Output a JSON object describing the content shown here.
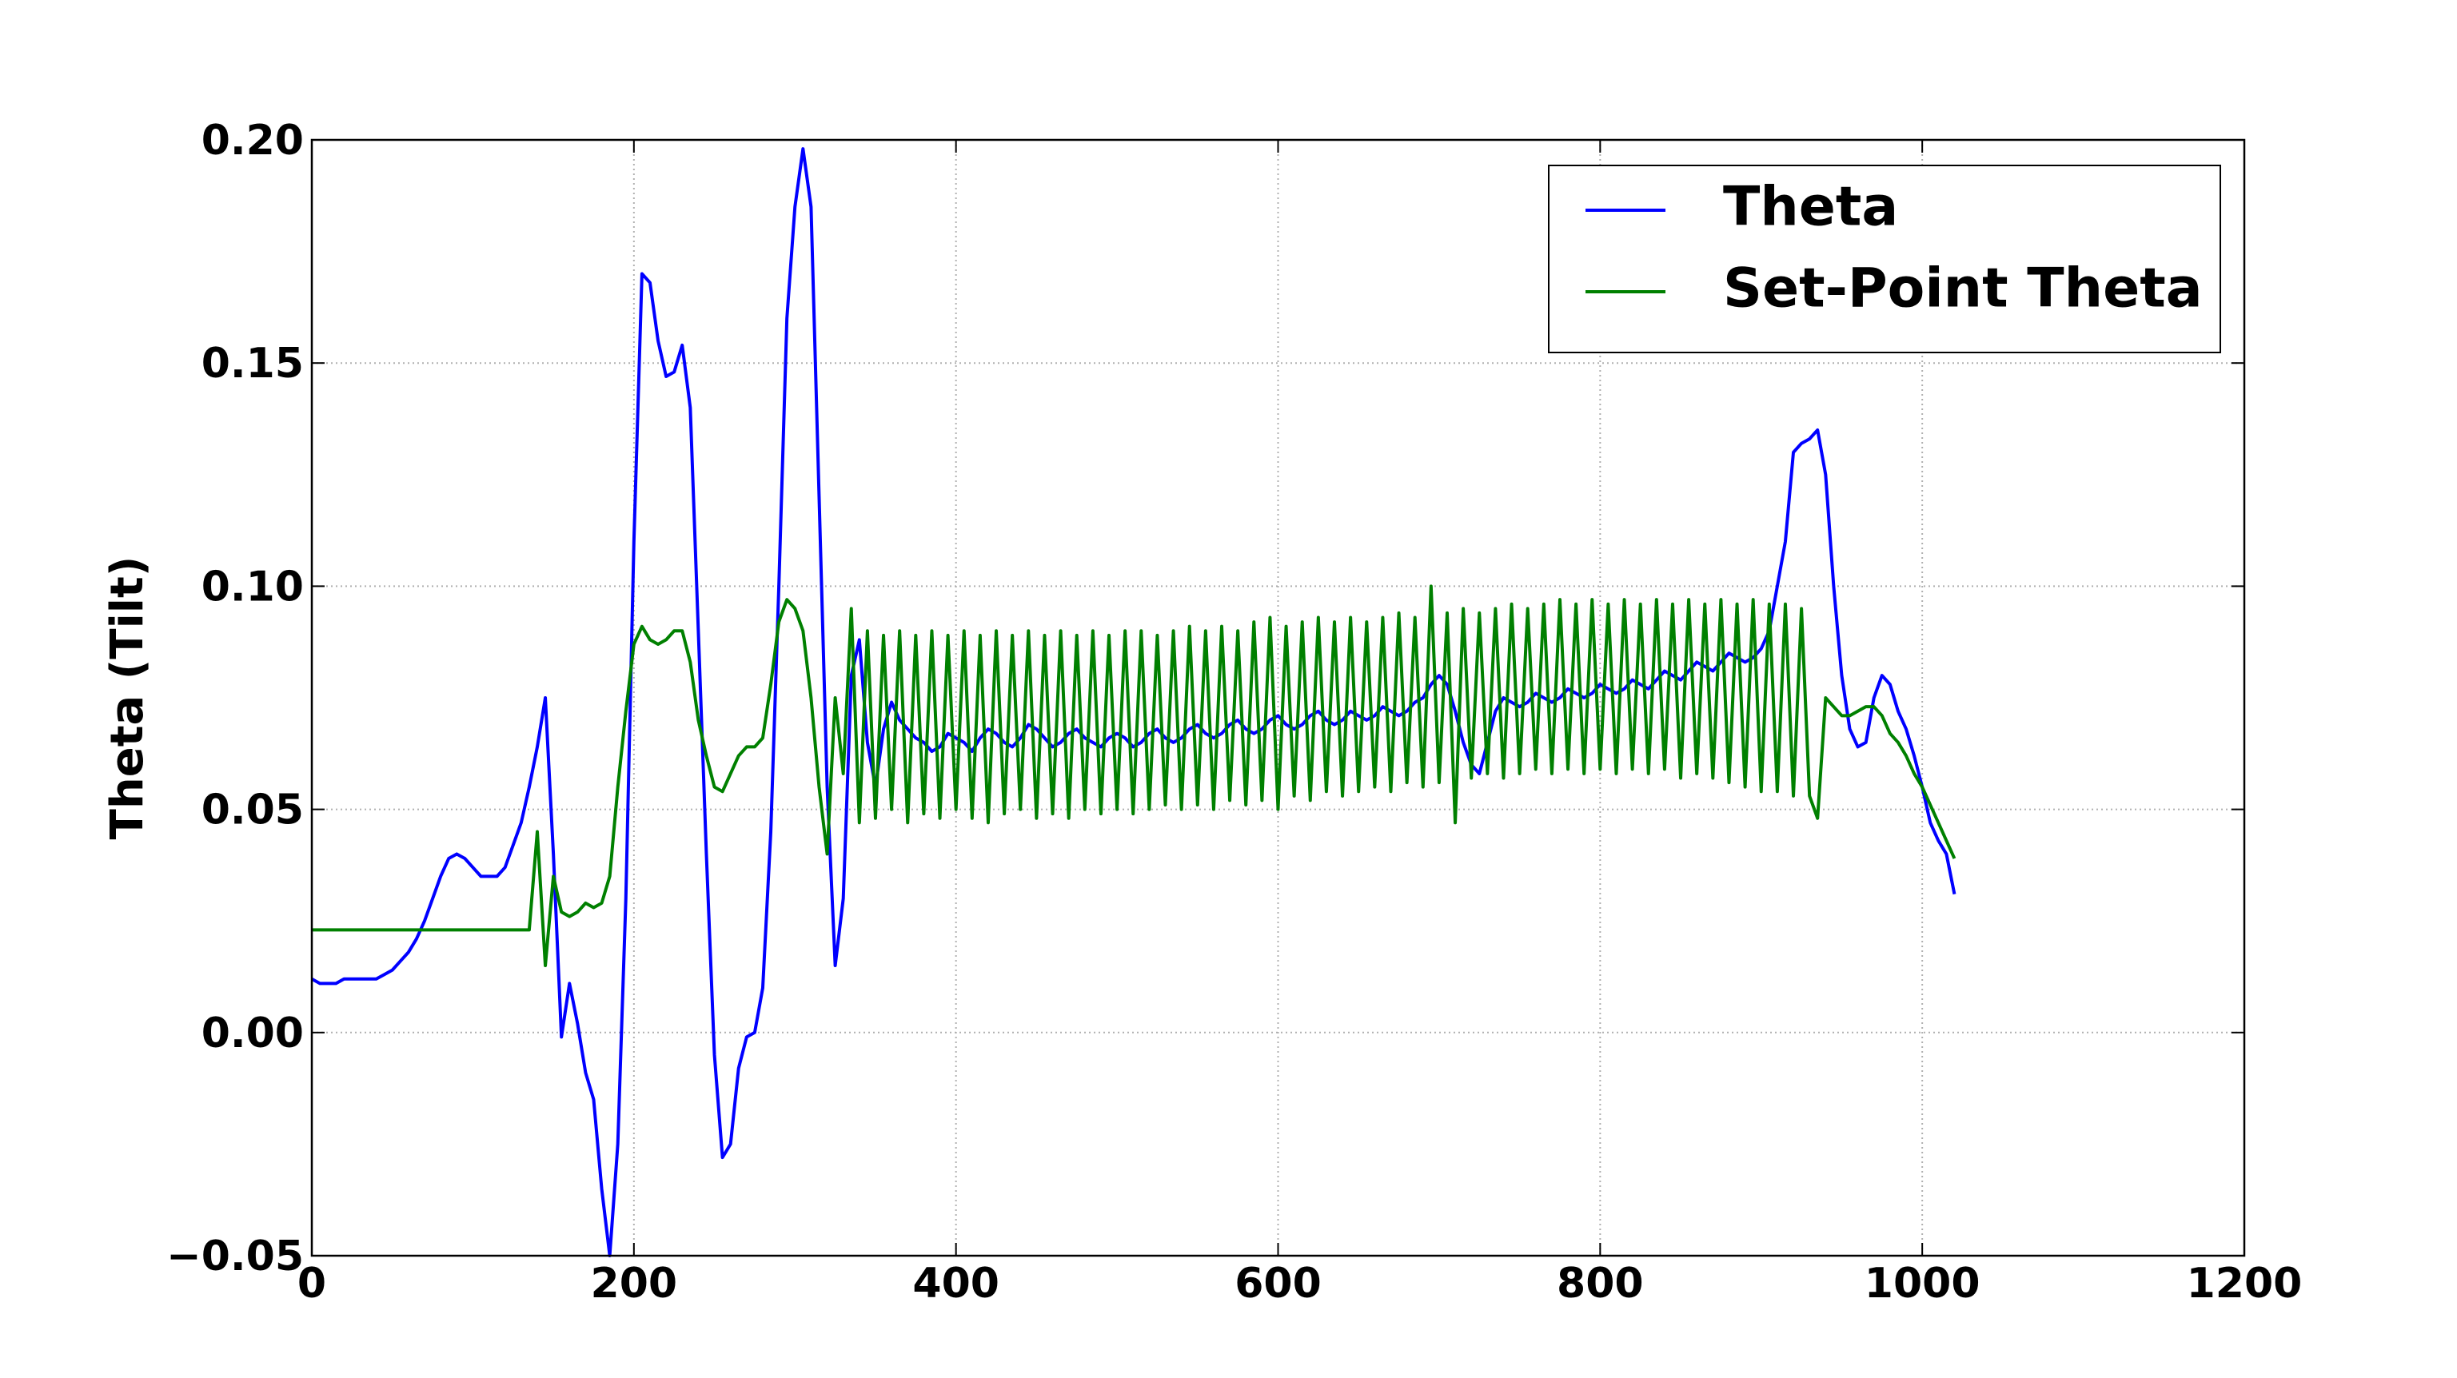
{
  "chart_data": {
    "type": "line",
    "ylabel": "Theta (Tilt)",
    "xlim": [
      0,
      1200
    ],
    "xticks": [
      0,
      200,
      400,
      600,
      800,
      1000,
      1200
    ],
    "ylim": [
      -0.05,
      0.2
    ],
    "yticks": [
      {
        "value": -0.05,
        "label": "−0.05"
      },
      {
        "value": 0,
        "label": "0.00"
      },
      0.05,
      {
        "value": 0.1,
        "label": "0.10"
      },
      0.15,
      {
        "value": 0.2,
        "label": "0.20"
      }
    ],
    "grid": true,
    "legend": "upper right",
    "x": [
      0,
      5,
      10,
      15,
      20,
      25,
      30,
      35,
      40,
      45,
      50,
      55,
      60,
      65,
      70,
      75,
      80,
      85,
      90,
      95,
      100,
      105,
      110,
      115,
      120,
      125,
      130,
      135,
      140,
      145,
      150,
      155,
      160,
      165,
      170,
      175,
      180,
      185,
      190,
      195,
      200,
      205,
      210,
      215,
      220,
      225,
      230,
      235,
      240,
      245,
      250,
      255,
      260,
      265,
      270,
      275,
      280,
      285,
      290,
      295,
      300,
      305,
      310,
      315,
      320,
      325,
      330,
      335,
      340,
      345,
      350,
      355,
      360,
      365,
      370,
      375,
      380,
      385,
      390,
      395,
      400,
      405,
      410,
      415,
      420,
      425,
      430,
      435,
      440,
      445,
      450,
      455,
      460,
      465,
      470,
      475,
      480,
      485,
      490,
      495,
      500,
      505,
      510,
      515,
      520,
      525,
      530,
      535,
      540,
      545,
      550,
      555,
      560,
      565,
      570,
      575,
      580,
      585,
      590,
      595,
      600,
      605,
      610,
      615,
      620,
      625,
      630,
      635,
      640,
      645,
      650,
      655,
      660,
      665,
      670,
      675,
      680,
      685,
      690,
      695,
      700,
      705,
      710,
      715,
      720,
      725,
      730,
      735,
      740,
      745,
      750,
      755,
      760,
      765,
      770,
      775,
      780,
      785,
      790,
      795,
      800,
      805,
      810,
      815,
      820,
      825,
      830,
      835,
      840,
      845,
      850,
      855,
      860,
      865,
      870,
      875,
      880,
      885,
      890,
      895,
      900,
      905,
      910,
      915,
      920,
      925,
      930,
      935,
      940,
      945,
      950,
      955,
      960,
      965,
      970,
      975,
      980,
      985,
      990,
      995,
      1000,
      1005,
      1010,
      1015,
      1020
    ],
    "series": [
      {
        "name": "Theta",
        "color": "#0000ff",
        "values": [
          0.012,
          0.011,
          0.011,
          0.011,
          0.012,
          0.012,
          0.012,
          0.012,
          0.012,
          0.013,
          0.014,
          0.016,
          0.018,
          0.021,
          0.025,
          0.03,
          0.035,
          0.039,
          0.04,
          0.039,
          0.037,
          0.035,
          0.035,
          0.035,
          0.037,
          0.042,
          0.047,
          0.055,
          0.064,
          0.075,
          0.04,
          -0.001,
          0.011,
          0.002,
          -0.009,
          -0.015,
          -0.035,
          -0.05,
          -0.025,
          0.03,
          0.11,
          0.17,
          0.168,
          0.155,
          0.147,
          0.148,
          0.154,
          0.14,
          0.09,
          0.04,
          -0.005,
          -0.028,
          -0.025,
          -0.008,
          -0.001,
          0.0,
          0.01,
          0.045,
          0.1,
          0.16,
          0.185,
          0.198,
          0.185,
          0.12,
          0.055,
          0.015,
          0.03,
          0.08,
          0.088,
          0.065,
          0.055,
          0.068,
          0.074,
          0.07,
          0.068,
          0.066,
          0.065,
          0.063,
          0.064,
          0.067,
          0.066,
          0.065,
          0.063,
          0.066,
          0.068,
          0.067,
          0.065,
          0.064,
          0.066,
          0.069,
          0.068,
          0.066,
          0.064,
          0.065,
          0.067,
          0.068,
          0.066,
          0.065,
          0.064,
          0.066,
          0.067,
          0.066,
          0.064,
          0.065,
          0.067,
          0.068,
          0.066,
          0.065,
          0.066,
          0.068,
          0.069,
          0.067,
          0.066,
          0.067,
          0.069,
          0.07,
          0.068,
          0.067,
          0.068,
          0.07,
          0.071,
          0.069,
          0.068,
          0.069,
          0.071,
          0.072,
          0.07,
          0.069,
          0.07,
          0.072,
          0.071,
          0.07,
          0.071,
          0.073,
          0.072,
          0.071,
          0.072,
          0.074,
          0.075,
          0.078,
          0.08,
          0.078,
          0.072,
          0.065,
          0.06,
          0.058,
          0.065,
          0.072,
          0.075,
          0.074,
          0.073,
          0.074,
          0.076,
          0.075,
          0.074,
          0.075,
          0.077,
          0.076,
          0.075,
          0.076,
          0.078,
          0.077,
          0.076,
          0.077,
          0.079,
          0.078,
          0.077,
          0.079,
          0.081,
          0.08,
          0.079,
          0.081,
          0.083,
          0.082,
          0.081,
          0.083,
          0.085,
          0.084,
          0.083,
          0.084,
          0.086,
          0.09,
          0.1,
          0.11,
          0.13,
          0.132,
          0.133,
          0.135,
          0.125,
          0.1,
          0.08,
          0.068,
          0.064,
          0.065,
          0.075,
          0.08,
          0.078,
          0.072,
          0.068,
          0.062,
          0.055,
          0.047,
          0.043,
          0.04,
          0.031
        ]
      },
      {
        "name": "Set-Point Theta",
        "color": "#008000",
        "values": [
          0.023,
          0.023,
          0.023,
          0.023,
          0.023,
          0.023,
          0.023,
          0.023,
          0.023,
          0.023,
          0.023,
          0.023,
          0.023,
          0.023,
          0.023,
          0.023,
          0.023,
          0.023,
          0.023,
          0.023,
          0.023,
          0.023,
          0.023,
          0.023,
          0.023,
          0.023,
          0.023,
          0.023,
          0.045,
          0.015,
          0.035,
          0.027,
          0.026,
          0.027,
          0.029,
          0.028,
          0.029,
          0.035,
          0.055,
          0.072,
          0.087,
          0.091,
          0.088,
          0.087,
          0.088,
          0.09,
          0.09,
          0.083,
          0.07,
          0.062,
          0.055,
          0.054,
          0.058,
          0.062,
          0.064,
          0.064,
          0.066,
          0.078,
          0.092,
          0.097,
          0.095,
          0.09,
          0.075,
          0.055,
          0.04,
          0.075,
          0.058,
          0.095,
          0.047,
          0.09,
          0.048,
          0.089,
          0.05,
          0.09,
          0.047,
          0.089,
          0.049,
          0.09,
          0.048,
          0.089,
          0.05,
          0.09,
          0.048,
          0.089,
          0.047,
          0.09,
          0.049,
          0.089,
          0.05,
          0.09,
          0.048,
          0.089,
          0.049,
          0.09,
          0.048,
          0.089,
          0.05,
          0.09,
          0.049,
          0.089,
          0.05,
          0.09,
          0.049,
          0.09,
          0.05,
          0.089,
          0.051,
          0.09,
          0.05,
          0.091,
          0.051,
          0.09,
          0.05,
          0.091,
          0.052,
          0.09,
          0.051,
          0.092,
          0.052,
          0.093,
          0.05,
          0.091,
          0.053,
          0.092,
          0.052,
          0.093,
          0.054,
          0.092,
          0.053,
          0.093,
          0.054,
          0.092,
          0.055,
          0.093,
          0.054,
          0.094,
          0.056,
          0.093,
          0.055,
          0.1,
          0.056,
          0.094,
          0.047,
          0.095,
          0.057,
          0.094,
          0.058,
          0.095,
          0.057,
          0.096,
          0.058,
          0.095,
          0.059,
          0.096,
          0.058,
          0.097,
          0.059,
          0.096,
          0.058,
          0.097,
          0.059,
          0.096,
          0.058,
          0.097,
          0.059,
          0.096,
          0.058,
          0.097,
          0.059,
          0.096,
          0.057,
          0.097,
          0.058,
          0.096,
          0.057,
          0.097,
          0.056,
          0.096,
          0.055,
          0.097,
          0.054,
          0.096,
          0.054,
          0.096,
          0.053,
          0.095,
          0.053,
          0.048,
          0.075,
          0.073,
          0.071,
          0.071,
          0.072,
          0.073,
          0.073,
          0.071,
          0.067,
          0.065,
          0.062,
          0.058,
          0.055,
          0.051,
          0.047,
          0.043,
          0.039
        ]
      }
    ]
  }
}
